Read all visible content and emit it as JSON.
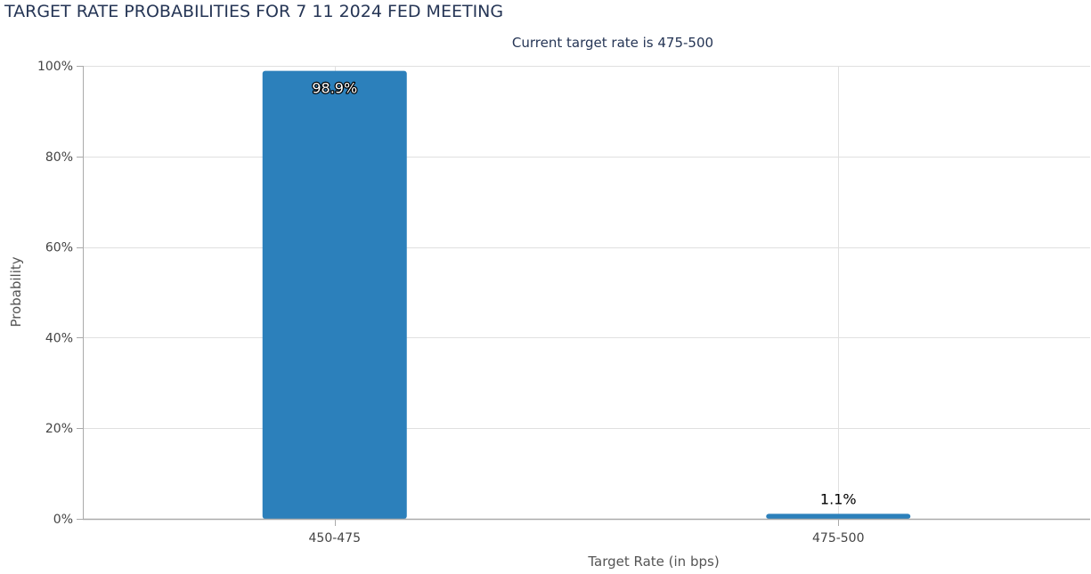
{
  "page": {
    "title": "TARGET RATE PROBABILITIES FOR 7 11 2024 FED MEETING"
  },
  "chart_data": {
    "type": "bar",
    "subtitle": "Current target rate is 475-500",
    "categories": [
      "450-475",
      "475-500"
    ],
    "values": [
      98.9,
      1.1
    ],
    "value_labels": [
      "98.9%",
      "1.1%"
    ],
    "xlabel": "Target Rate (in bps)",
    "ylabel": "Probability",
    "ylim": [
      0,
      100
    ],
    "y_ticks": [
      0,
      20,
      40,
      60,
      80,
      100
    ],
    "y_tick_labels": [
      "0%",
      "20%",
      "40%",
      "60%",
      "80%",
      "100%"
    ],
    "grid": true,
    "legend": "none",
    "bar_color": "#2c80bb",
    "text_color": "#253555",
    "axis_text_color": "#444444",
    "grid_color": "#e0e0e0"
  }
}
